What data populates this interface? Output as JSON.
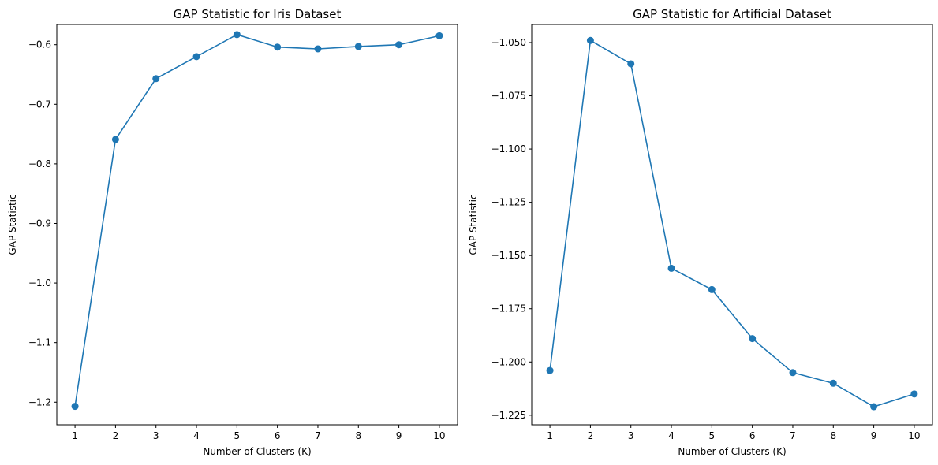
{
  "chart_data": [
    {
      "type": "line",
      "title": "GAP Statistic for Iris Dataset",
      "xlabel": "Number of Clusters (K)",
      "ylabel": "GAP Statistic",
      "x": [
        1,
        2,
        3,
        4,
        5,
        6,
        7,
        8,
        9,
        10
      ],
      "x_ticks": [
        "1",
        "2",
        "3",
        "4",
        "5",
        "6",
        "7",
        "8",
        "9",
        "10"
      ],
      "xlim": [
        0.55,
        10.45
      ],
      "ylim": [
        -1.238,
        -0.566
      ],
      "y_ticks": [
        -1.2,
        -1.1,
        -1.0,
        -0.9,
        -0.8,
        -0.7,
        -0.6
      ],
      "y_tick_labels": [
        "−1.2",
        "−1.1",
        "−1.0",
        "−0.9",
        "−0.8",
        "−0.7",
        "−0.6"
      ],
      "grid": false,
      "series": [
        {
          "values": [
            -1.207,
            -0.759,
            -0.657,
            -0.62,
            -0.583,
            -0.604,
            -0.607,
            -0.603,
            -0.6,
            -0.585
          ],
          "color": "#1f77b4",
          "marker": "circle"
        }
      ]
    },
    {
      "type": "line",
      "title": "GAP Statistic for Artificial Dataset",
      "xlabel": "Number of Clusters (K)",
      "ylabel": "GAP Statistic",
      "x": [
        1,
        2,
        3,
        4,
        5,
        6,
        7,
        8,
        9,
        10
      ],
      "x_ticks": [
        "1",
        "2",
        "3",
        "4",
        "5",
        "6",
        "7",
        "8",
        "9",
        "10"
      ],
      "xlim": [
        0.55,
        10.45
      ],
      "ylim": [
        -1.2295,
        -1.0415
      ],
      "y_ticks": [
        -1.225,
        -1.2,
        -1.175,
        -1.15,
        -1.125,
        -1.1,
        -1.075,
        -1.05
      ],
      "y_tick_labels": [
        "−1.225",
        "−1.200",
        "−1.175",
        "−1.150",
        "−1.125",
        "−1.100",
        "−1.075",
        "−1.050"
      ],
      "grid": false,
      "series": [
        {
          "values": [
            -1.204,
            -1.049,
            -1.06,
            -1.156,
            -1.166,
            -1.189,
            -1.205,
            -1.21,
            -1.221,
            -1.215
          ],
          "color": "#1f77b4",
          "marker": "circle"
        }
      ]
    }
  ]
}
